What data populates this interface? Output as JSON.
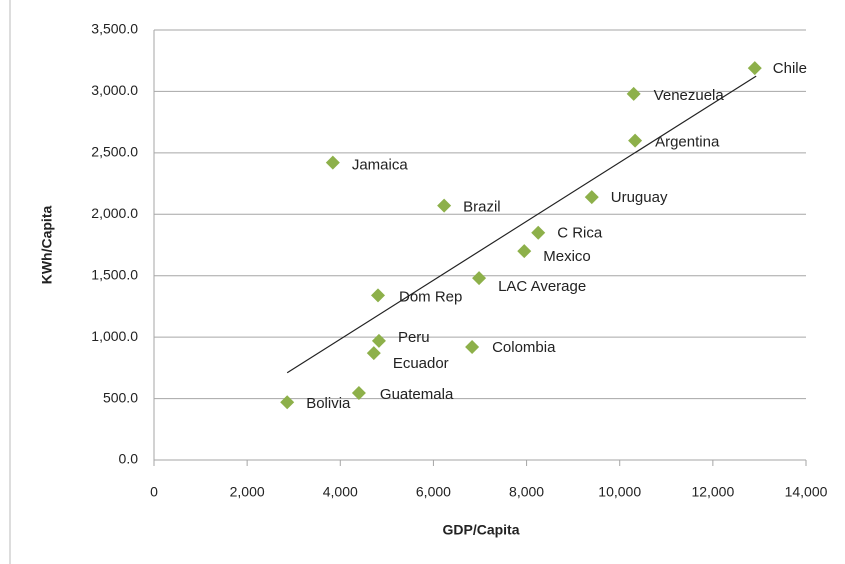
{
  "chart_data": {
    "type": "scatter",
    "x_label": "GDP/Capita",
    "y_label": "KWh/Capita",
    "labels": [
      "Chile",
      "Venezuela",
      "Argentina",
      "Jamaica",
      "Uruguay",
      "Brazil",
      "C Rica",
      "Mexico",
      "LAC Average",
      "Dom Rep",
      "Peru",
      "Ecuador",
      "Colombia",
      "Guatemala",
      "Bolivia"
    ],
    "x": [
      12900,
      10300,
      10330,
      3840,
      9400,
      6230,
      8250,
      7950,
      6980,
      4810,
      4830,
      4720,
      6830,
      4400,
      2860
    ],
    "y": [
      3190,
      2980,
      2600,
      2420,
      2140,
      2070,
      1850,
      1700,
      1480,
      1340,
      970,
      870,
      920,
      545,
      470
    ],
    "color": "#8db04a",
    "trendline": {
      "x": [
        2860,
        12930
      ],
      "y": [
        710,
        3125
      ]
    },
    "xlim": [
      0,
      14000
    ],
    "xticks": [
      0,
      {
        "value": 2000,
        "label": "2,000"
      },
      {
        "value": 4000,
        "label": "4,000"
      },
      {
        "value": 6000,
        "label": "6,000"
      },
      {
        "value": 8000,
        "label": "8,000"
      },
      {
        "value": 10000,
        "label": "10,000"
      },
      {
        "value": 12000,
        "label": "12,000"
      },
      {
        "value": 14000,
        "label": "14,000"
      }
    ],
    "ylim": [
      0,
      3500
    ],
    "yticks": [
      {
        "value": 0,
        "label": "0.0"
      },
      {
        "value": 500,
        "label": "500.0"
      },
      {
        "value": 1000,
        "label": "1,000.0"
      },
      {
        "value": 1500,
        "label": "1,500.0"
      },
      {
        "value": 2000,
        "label": "2,000.0"
      },
      {
        "value": 2500,
        "label": "2,500.0"
      },
      {
        "value": 3000,
        "label": "3,000.0"
      },
      {
        "value": 3500,
        "label": "3,500.0"
      }
    ],
    "grid": true
  }
}
